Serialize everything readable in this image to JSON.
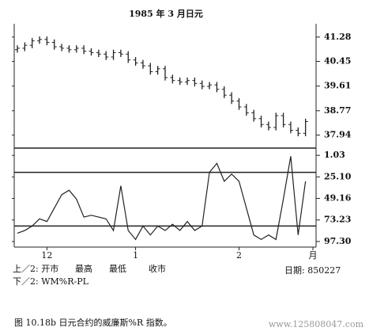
{
  "chart_data": [
    {
      "type": "ohlc",
      "title": "1985 年 3 月日元",
      "color": "#222",
      "xlim": [
        0,
        40
      ],
      "open": [
        40.85,
        40.9,
        41.0,
        41.15,
        41.2,
        41.1,
        40.95,
        40.9,
        40.85,
        40.9,
        40.8,
        40.75,
        40.7,
        40.6,
        40.75,
        40.7,
        40.5,
        40.4,
        40.3,
        40.1,
        40.2,
        39.9,
        39.8,
        39.75,
        39.8,
        39.7,
        39.6,
        39.65,
        39.5,
        39.3,
        39.1,
        38.9,
        38.7,
        38.5,
        38.3,
        38.2,
        38.6,
        38.3,
        38.1,
        38.0
      ],
      "high": [
        41.0,
        41.1,
        41.25,
        41.3,
        41.3,
        41.2,
        41.05,
        41.0,
        41.0,
        41.0,
        40.9,
        40.85,
        40.8,
        40.85,
        40.85,
        40.8,
        40.6,
        40.5,
        40.4,
        40.3,
        40.3,
        40.0,
        39.9,
        39.9,
        39.9,
        39.8,
        39.75,
        39.75,
        39.6,
        39.4,
        39.2,
        39.0,
        38.8,
        38.6,
        38.4,
        38.7,
        38.7,
        38.4,
        38.2,
        38.5
      ],
      "low": [
        40.75,
        40.8,
        40.9,
        41.05,
        41.0,
        40.85,
        40.8,
        40.75,
        40.75,
        40.7,
        40.65,
        40.6,
        40.5,
        40.5,
        40.6,
        40.4,
        40.3,
        40.2,
        40.0,
        40.0,
        39.8,
        39.7,
        39.65,
        39.65,
        39.6,
        39.5,
        39.5,
        39.4,
        39.2,
        39.0,
        38.8,
        38.6,
        38.4,
        38.2,
        38.1,
        38.1,
        38.2,
        38.0,
        37.9,
        37.9
      ],
      "close": [
        40.9,
        41.0,
        41.15,
        41.2,
        41.1,
        40.95,
        40.9,
        40.85,
        40.9,
        40.8,
        40.75,
        40.7,
        40.6,
        40.75,
        40.7,
        40.5,
        40.4,
        40.3,
        40.1,
        40.2,
        39.9,
        39.8,
        39.75,
        39.8,
        39.7,
        39.6,
        39.65,
        39.5,
        39.3,
        39.1,
        38.9,
        38.7,
        38.5,
        38.3,
        38.2,
        38.6,
        38.3,
        38.1,
        38.0,
        38.4
      ],
      "ylim": [
        37.55,
        41.68
      ],
      "yticks": [
        41.28,
        40.45,
        39.61,
        38.77,
        37.94
      ]
    },
    {
      "type": "line",
      "color": "#222",
      "xlim": [
        0,
        40
      ],
      "xticks": [
        {
          "value": 4,
          "label": "12"
        },
        {
          "value": 16,
          "label": "1"
        },
        {
          "value": 30,
          "label": "2"
        },
        {
          "value": 40,
          "label": "月"
        }
      ],
      "values": [
        88,
        85,
        80,
        72,
        75,
        60,
        45,
        40,
        50,
        70,
        68,
        70,
        72,
        85,
        35,
        85,
        95,
        80,
        90,
        80,
        85,
        78,
        85,
        75,
        85,
        80,
        20,
        10,
        30,
        22,
        30,
        60,
        90,
        95,
        90,
        95,
        50,
        2,
        90,
        30
      ],
      "ylim": [
        100,
        0
      ],
      "yticks": [
        1.03,
        {
          "value": 25.1,
          "label": "25.10"
        },
        49.16,
        73.23,
        {
          "value": 97.3,
          "label": "97.30"
        }
      ],
      "hlines": [
        20,
        80
      ]
    }
  ],
  "legend": {
    "line1": "上／2: 开市",
    "f2": "最高",
    "f3": "最低",
    "f4": "收市",
    "date": "日期: 850227",
    "line2": "下／2: WM%R-PL"
  },
  "caption": "图 10.18b  日元合约的威廉斯%R 指数。",
  "watermark": "www.125808047.com"
}
